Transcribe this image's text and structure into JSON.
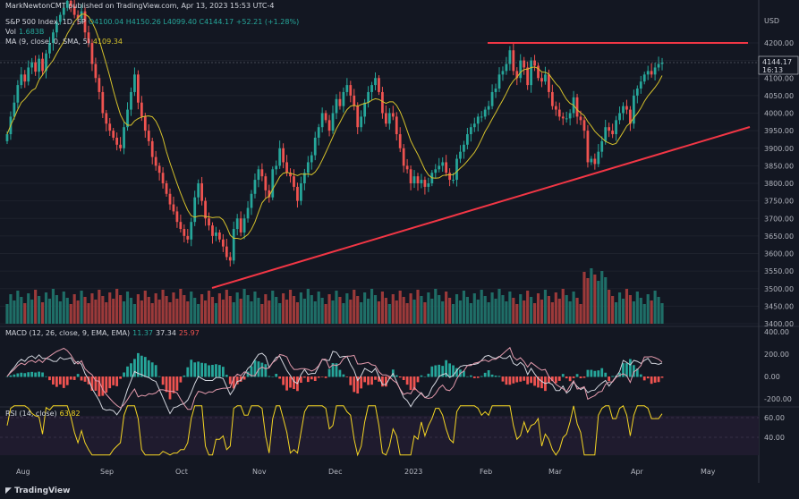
{
  "header": {
    "published": "MarkNewtonCMT published on TradingView.com, Apr 13, 2023 15:53 UTC-4",
    "symbol": "S&P 500 Index, 1D, SP",
    "ohlc": "O4100.04  H4150.26  L4099.40  C4144.17  +52.21 (+1.28%)",
    "vol_label": "Vol",
    "vol_value": "1.683B",
    "ma_label": "MA (9, close, 0, SMA, 5)",
    "ma_value": "4109.34",
    "currency": "USD"
  },
  "price_tag": {
    "value": "4144.17",
    "time": "16:13"
  },
  "macd": {
    "label": "MACD (12, 26, close, 9, EMA, EMA)",
    "v1": "11.37",
    "v2": "37.34",
    "v3": "25.97"
  },
  "rsi": {
    "label": "RSI (14, close)",
    "value": "63.82"
  },
  "footer": {
    "brand": "TradingView"
  },
  "colors": {
    "up": "#26a69a",
    "down": "#ef5350",
    "ma": "#d4c02b",
    "trend": "#f23645",
    "rsi": "#f5d623"
  },
  "chart_data": {
    "type": "candlestick",
    "price_axis": {
      "min": 3400,
      "max": 4200,
      "ticks": [
        "4200.00",
        "4150.00",
        "4100.00",
        "4050.00",
        "4000.00",
        "3950.00",
        "3900.00",
        "3850.00",
        "3800.00",
        "3750.00",
        "3700.00",
        "3650.00",
        "3600.00",
        "3550.00",
        "3500.00",
        "3450.00",
        "3400.00"
      ]
    },
    "macd_axis": {
      "ticks": [
        "400.00",
        "200.00",
        "0.00",
        "-200.00"
      ]
    },
    "rsi_axis": {
      "ticks": [
        "60.00",
        "40.00"
      ]
    },
    "x_labels": [
      "Aug",
      "Sep",
      "Oct",
      "Nov",
      "Dec",
      "2023",
      "Feb",
      "Mar",
      "Apr",
      "May"
    ],
    "closes": [
      3940,
      3990,
      4030,
      4080,
      4110,
      4090,
      4130,
      4145,
      4118,
      4155,
      4120,
      4170,
      4200,
      4230,
      4260,
      4280,
      4300,
      4320,
      4305,
      4280,
      4270,
      4290,
      4230,
      4200,
      4140,
      4100,
      4060,
      4000,
      3970,
      3950,
      3930,
      3910,
      3900,
      3960,
      4010,
      4060,
      4110,
      4030,
      3990,
      3950,
      3920,
      3875,
      3850,
      3830,
      3800,
      3770,
      3740,
      3720,
      3690,
      3670,
      3650,
      3640,
      3690,
      3760,
      3800,
      3750,
      3700,
      3680,
      3650,
      3660,
      3640,
      3620,
      3590,
      3580,
      3670,
      3700,
      3660,
      3700,
      3730,
      3770,
      3810,
      3840,
      3820,
      3780,
      3760,
      3840,
      3850,
      3900,
      3860,
      3830,
      3820,
      3790,
      3750,
      3800,
      3830,
      3860,
      3880,
      3930,
      3960,
      4000,
      3980,
      3950,
      4000,
      4040,
      4020,
      4060,
      4080,
      4050,
      4020,
      3960,
      3990,
      4030,
      4060,
      4080,
      4100,
      4060,
      4000,
      3970,
      4000,
      3990,
      3940,
      3900,
      3850,
      3840,
      3800,
      3820,
      3800,
      3810,
      3790,
      3800,
      3830,
      3840,
      3850,
      3860,
      3830,
      3810,
      3810,
      3870,
      3890,
      3910,
      3940,
      3960,
      3970,
      3990,
      3990,
      4010,
      4020,
      4060,
      4070,
      4110,
      4120,
      4140,
      4179,
      4120,
      4100,
      4150,
      4130,
      4080,
      4150,
      4135,
      4100,
      4090,
      4110,
      4060,
      4020,
      4010,
      3990,
      3985,
      3985,
      4000,
      4045,
      3990,
      3980,
      3950,
      3860,
      3870,
      3855,
      3890,
      3920,
      3960,
      3950,
      3940,
      3980,
      4000,
      4020,
      4010,
      3970,
      4050,
      4070,
      4090,
      4110,
      4120,
      4110,
      4130,
      4140,
      4144
    ],
    "ma_label": "MA 9"
  }
}
